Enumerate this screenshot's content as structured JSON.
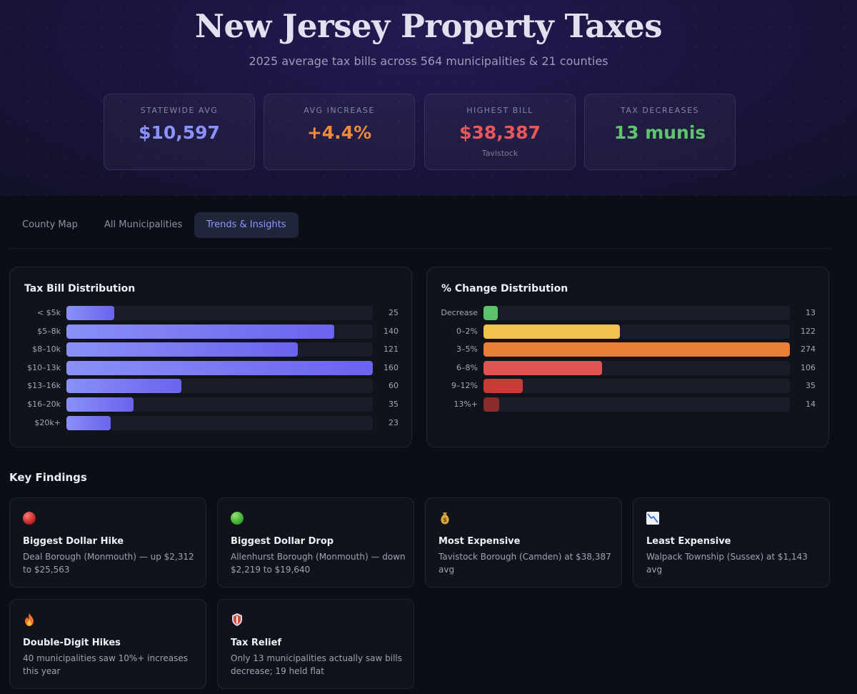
{
  "header": {
    "title": "New Jersey Property Taxes",
    "subtitle": "2025 average tax bills across 564 municipalities & 21 counties"
  },
  "stats": [
    {
      "label": "STATEWIDE AVG",
      "value": "$10,597",
      "note": "",
      "color": "#8a92ff"
    },
    {
      "label": "AVG INCREASE",
      "value": "+4.4%",
      "note": "",
      "color": "#ef8a3c"
    },
    {
      "label": "HIGHEST BILL",
      "value": "$38,387",
      "note": "Tavistock",
      "color": "#e8575a"
    },
    {
      "label": "TAX DECREASES",
      "value": "13 munis",
      "note": "",
      "color": "#5fc46b"
    }
  ],
  "tabs": [
    {
      "label": "County Map",
      "active": false
    },
    {
      "label": "All Municipalities",
      "active": false
    },
    {
      "label": "Trends & Insights",
      "active": true
    }
  ],
  "chart_data": [
    {
      "type": "bar",
      "orientation": "horizontal",
      "title": "Tax Bill Distribution",
      "categories": [
        "< $5k",
        "$5–8k",
        "$8–10k",
        "$10–13k",
        "$13–16k",
        "$16–20k",
        "$20k+"
      ],
      "values": [
        25,
        140,
        121,
        160,
        60,
        35,
        23
      ],
      "colors": [
        "#7f86f7",
        "#7f86f7",
        "#7f86f7",
        "#7f86f7",
        "#7f86f7",
        "#7f86f7",
        "#7f86f7"
      ]
    },
    {
      "type": "bar",
      "orientation": "horizontal",
      "title": "% Change Distribution",
      "categories": [
        "Decrease",
        "0–2%",
        "3–5%",
        "6–8%",
        "9–12%",
        "13%+"
      ],
      "values": [
        13,
        122,
        274,
        106,
        35,
        14
      ],
      "colors": [
        "#5bc46a",
        "#f2c14e",
        "#e97e37",
        "#e15252",
        "#c73a36",
        "#8b2a2a"
      ]
    }
  ],
  "key_findings": {
    "title": "Key Findings",
    "cards": [
      {
        "icon": "red-circle-icon",
        "title": "Biggest Dollar Hike",
        "desc": "Deal Borough (Monmouth) — up $2,312 to $25,563"
      },
      {
        "icon": "green-circle-icon",
        "title": "Biggest Dollar Drop",
        "desc": "Allenhurst Borough (Monmouth) — down $2,219 to $19,640"
      },
      {
        "icon": "money-bag-icon",
        "title": "Most Expensive",
        "desc": "Tavistock Borough (Camden) at $38,387 avg"
      },
      {
        "icon": "chart-decreasing-icon",
        "title": "Least Expensive",
        "desc": "Walpack Township (Sussex) at $1,143 avg"
      },
      {
        "icon": "fire-icon",
        "title": "Double-Digit Hikes",
        "desc": "40 municipalities saw 10%+ increases this year"
      },
      {
        "icon": "shield-icon",
        "title": "Tax Relief",
        "desc": "Only 13 municipalities actually saw bills decrease; 19 held flat"
      }
    ]
  }
}
